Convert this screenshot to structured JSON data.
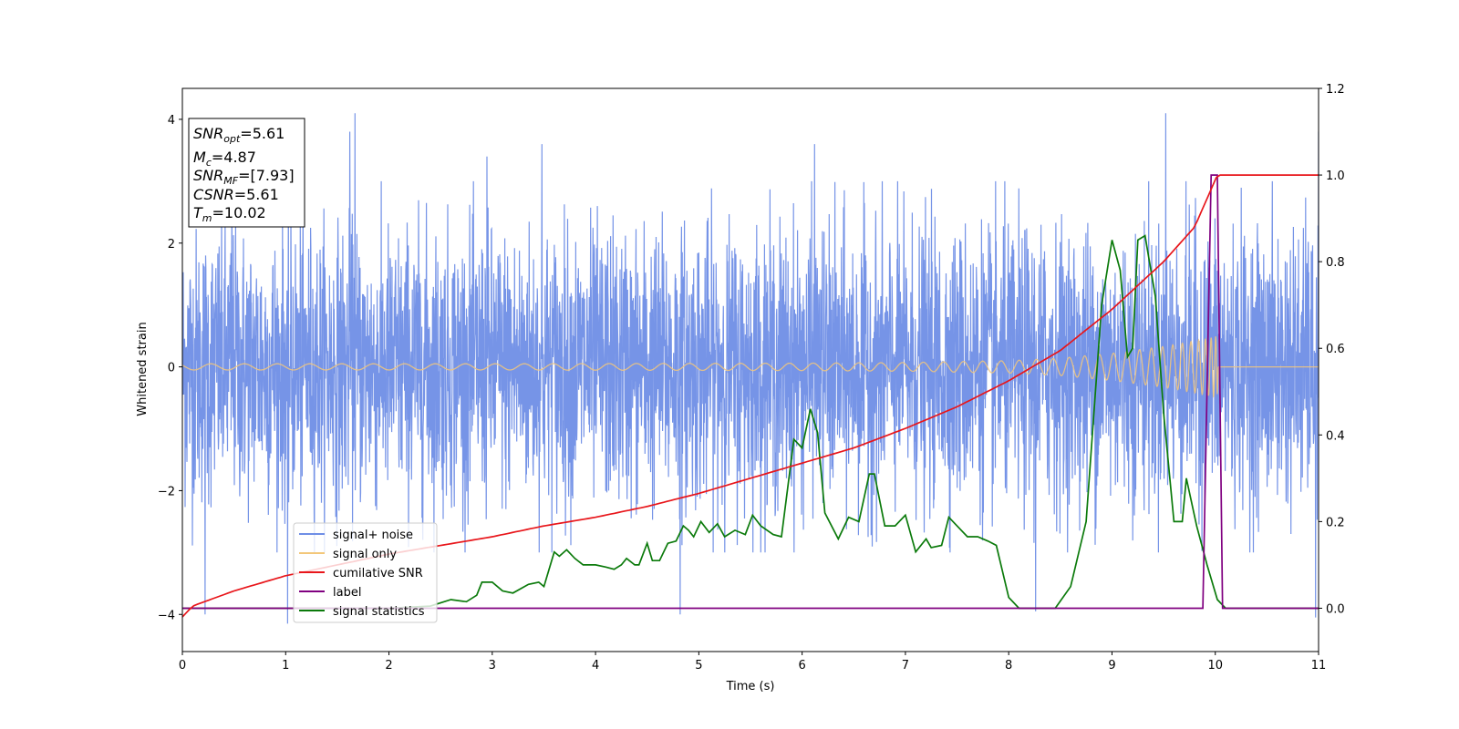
{
  "chart_data": {
    "type": "line",
    "xlabel": "Time (s)",
    "ylabel": "Whitened strain",
    "xlim": [
      0,
      11
    ],
    "ylim": [
      -4.6,
      4.5
    ],
    "ylim_right": [
      -0.1,
      1.2
    ],
    "x_ticks": [
      0,
      1,
      2,
      3,
      4,
      5,
      6,
      7,
      8,
      9,
      10,
      11
    ],
    "x_tick_labels": [
      "0",
      "1",
      "2",
      "3",
      "4",
      "5",
      "6",
      "7",
      "8",
      "9",
      "10",
      "11"
    ],
    "y_ticks": [
      -4,
      -2,
      0,
      2,
      4
    ],
    "y_tick_labels": [
      "−4",
      "−2",
      "0",
      "2",
      "4"
    ],
    "y_right_ticks": [
      0.0,
      0.2,
      0.4,
      0.6,
      0.8,
      1.0,
      1.2
    ],
    "y_right_tick_labels": [
      "0.0",
      "0.2",
      "0.4",
      "0.6",
      "0.8",
      "1.0",
      "1.2"
    ],
    "grid": false,
    "legend_position": "lower-left",
    "annotation_box": {
      "lines": [
        {
          "main": "SNR",
          "sub": "opt",
          "rest": "=5.61"
        },
        {
          "main": "M",
          "sub": "c",
          "rest": "=4.87"
        },
        {
          "main": "SNR",
          "sub": "MF",
          "rest": "=[7.93]"
        },
        {
          "main": "CSNR",
          "sub": "",
          "rest": "=5.61"
        },
        {
          "main": "T",
          "sub": "m",
          "rest": "=10.02"
        }
      ]
    },
    "series": [
      {
        "name": "signal+ noise",
        "color": "#6f8ee6",
        "axis": "left",
        "description_sd": 1.1,
        "peak_points": [
          [
            0.22,
            -4.0
          ],
          [
            0.48,
            3.5
          ],
          [
            1.02,
            -4.15
          ],
          [
            1.62,
            3.8
          ],
          [
            1.67,
            4.1
          ],
          [
            2.95,
            3.4
          ],
          [
            3.48,
            3.6
          ],
          [
            4.82,
            -4.0
          ],
          [
            6.12,
            3.6
          ],
          [
            8.26,
            -3.95
          ],
          [
            9.52,
            4.1
          ],
          [
            10.97,
            -4.05
          ],
          [
            11.0,
            3.8
          ]
        ]
      },
      {
        "name": "signal only",
        "color": "#f3c77a",
        "axis": "left",
        "envelope_points": [
          [
            0,
            0.05
          ],
          [
            3,
            0.05
          ],
          [
            6,
            0.06
          ],
          [
            7,
            0.07
          ],
          [
            8,
            0.1
          ],
          [
            8.5,
            0.14
          ],
          [
            9,
            0.22
          ],
          [
            9.5,
            0.33
          ],
          [
            9.9,
            0.45
          ],
          [
            10.02,
            0.5
          ],
          [
            10.03,
            0.0
          ],
          [
            11,
            0.0
          ]
        ]
      },
      {
        "name": "cumilative SNR",
        "color": "#e8161b",
        "axis": "right",
        "points": [
          [
            0,
            -0.02
          ],
          [
            0.1,
            0.005
          ],
          [
            0.5,
            0.04
          ],
          [
            1,
            0.075
          ],
          [
            1.5,
            0.1
          ],
          [
            2,
            0.125
          ],
          [
            2.5,
            0.145
          ],
          [
            3,
            0.165
          ],
          [
            3.5,
            0.19
          ],
          [
            4,
            0.21
          ],
          [
            4.5,
            0.235
          ],
          [
            5,
            0.265
          ],
          [
            5.5,
            0.3
          ],
          [
            6,
            0.335
          ],
          [
            6.5,
            0.37
          ],
          [
            7,
            0.415
          ],
          [
            7.5,
            0.465
          ],
          [
            8,
            0.525
          ],
          [
            8.5,
            0.595
          ],
          [
            9,
            0.69
          ],
          [
            9.5,
            0.8
          ],
          [
            9.8,
            0.88
          ],
          [
            10.02,
            1.0
          ],
          [
            11,
            1.0
          ]
        ]
      },
      {
        "name": "label",
        "color": "#800080",
        "axis": "right",
        "points": [
          [
            0,
            0.0
          ],
          [
            9.88,
            0.0
          ],
          [
            9.96,
            1.0
          ],
          [
            10.02,
            1.0
          ],
          [
            10.07,
            0.0
          ],
          [
            11,
            0.0
          ]
        ]
      },
      {
        "name": "signal statistics",
        "color": "#0b7a0b",
        "axis": "right",
        "points": [
          [
            0,
            0.0
          ],
          [
            2.0,
            0.0
          ],
          [
            2.4,
            0.005
          ],
          [
            2.6,
            0.02
          ],
          [
            2.75,
            0.015
          ],
          [
            2.85,
            0.03
          ],
          [
            2.9,
            0.06
          ],
          [
            3.0,
            0.06
          ],
          [
            3.1,
            0.04
          ],
          [
            3.2,
            0.035
          ],
          [
            3.35,
            0.055
          ],
          [
            3.45,
            0.06
          ],
          [
            3.5,
            0.05
          ],
          [
            3.6,
            0.13
          ],
          [
            3.65,
            0.12
          ],
          [
            3.72,
            0.135
          ],
          [
            3.8,
            0.115
          ],
          [
            3.88,
            0.1
          ],
          [
            4.0,
            0.1
          ],
          [
            4.1,
            0.095
          ],
          [
            4.18,
            0.09
          ],
          [
            4.25,
            0.1
          ],
          [
            4.3,
            0.115
          ],
          [
            4.38,
            0.1
          ],
          [
            4.42,
            0.1
          ],
          [
            4.5,
            0.15
          ],
          [
            4.55,
            0.11
          ],
          [
            4.62,
            0.11
          ],
          [
            4.7,
            0.15
          ],
          [
            4.78,
            0.155
          ],
          [
            4.85,
            0.19
          ],
          [
            4.9,
            0.18
          ],
          [
            4.95,
            0.165
          ],
          [
            5.02,
            0.2
          ],
          [
            5.1,
            0.175
          ],
          [
            5.18,
            0.195
          ],
          [
            5.25,
            0.165
          ],
          [
            5.35,
            0.18
          ],
          [
            5.45,
            0.17
          ],
          [
            5.52,
            0.215
          ],
          [
            5.6,
            0.19
          ],
          [
            5.72,
            0.17
          ],
          [
            5.8,
            0.165
          ],
          [
            5.92,
            0.39
          ],
          [
            6.0,
            0.37
          ],
          [
            6.08,
            0.46
          ],
          [
            6.15,
            0.405
          ],
          [
            6.22,
            0.22
          ],
          [
            6.35,
            0.16
          ],
          [
            6.45,
            0.21
          ],
          [
            6.55,
            0.2
          ],
          [
            6.65,
            0.31
          ],
          [
            6.7,
            0.31
          ],
          [
            6.8,
            0.19
          ],
          [
            6.9,
            0.19
          ],
          [
            7.0,
            0.215
          ],
          [
            7.1,
            0.13
          ],
          [
            7.2,
            0.16
          ],
          [
            7.25,
            0.14
          ],
          [
            7.35,
            0.145
          ],
          [
            7.42,
            0.21
          ],
          [
            7.5,
            0.19
          ],
          [
            7.6,
            0.165
          ],
          [
            7.7,
            0.165
          ],
          [
            7.8,
            0.155
          ],
          [
            7.88,
            0.145
          ],
          [
            8.0,
            0.025
          ],
          [
            8.1,
            0.0
          ],
          [
            8.2,
            0.0
          ],
          [
            8.3,
            0.0
          ],
          [
            8.45,
            0.0
          ],
          [
            8.6,
            0.05
          ],
          [
            8.75,
            0.2
          ],
          [
            8.9,
            0.7
          ],
          [
            9.0,
            0.85
          ],
          [
            9.08,
            0.78
          ],
          [
            9.15,
            0.58
          ],
          [
            9.2,
            0.6
          ],
          [
            9.25,
            0.85
          ],
          [
            9.32,
            0.86
          ],
          [
            9.42,
            0.72
          ],
          [
            9.5,
            0.45
          ],
          [
            9.6,
            0.2
          ],
          [
            9.68,
            0.2
          ],
          [
            9.72,
            0.3
          ],
          [
            9.82,
            0.19
          ],
          [
            9.92,
            0.1
          ],
          [
            10.02,
            0.02
          ],
          [
            10.1,
            0.0
          ],
          [
            11,
            0.0
          ]
        ]
      }
    ]
  }
}
